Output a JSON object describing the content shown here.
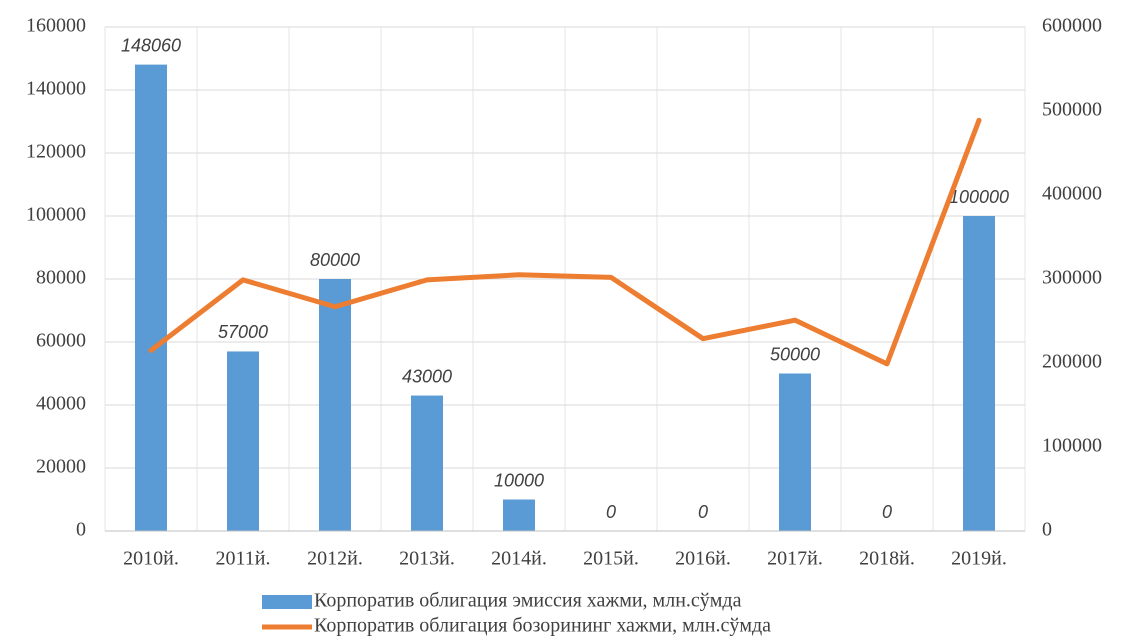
{
  "chart_data": {
    "type": "bar",
    "categories": [
      "2010й.",
      "2011й.",
      "2012й.",
      "2013й.",
      "2014й.",
      "2015й.",
      "2016й.",
      "2017й.",
      "2018й.",
      "2019й."
    ],
    "series": [
      {
        "name": "Корпоратив облигация эмиссия хажми, млн.сўмда",
        "type": "bar",
        "color": "#5b9bd5",
        "data_labels": true,
        "values": [
          148060,
          57000,
          80000,
          43000,
          10000,
          0,
          0,
          50000,
          0,
          100000
        ]
      },
      {
        "name": "Корпоратив облигация бозорининг хажми, млн.сўмда",
        "type": "line",
        "axis": "y2",
        "color": "#ed7d31",
        "values": [
          215000,
          299000,
          267000,
          299000,
          305000,
          302000,
          229000,
          251000,
          199000,
          489000
        ]
      }
    ],
    "ylim": [
      0,
      160000
    ],
    "yticks": [
      0,
      20000,
      40000,
      60000,
      80000,
      100000,
      120000,
      140000,
      160000
    ],
    "y2lim": [
      0,
      600000
    ],
    "y2ticks": [
      0,
      100000,
      200000,
      300000,
      400000,
      500000,
      600000
    ],
    "grid": true,
    "legend": "bottom"
  }
}
